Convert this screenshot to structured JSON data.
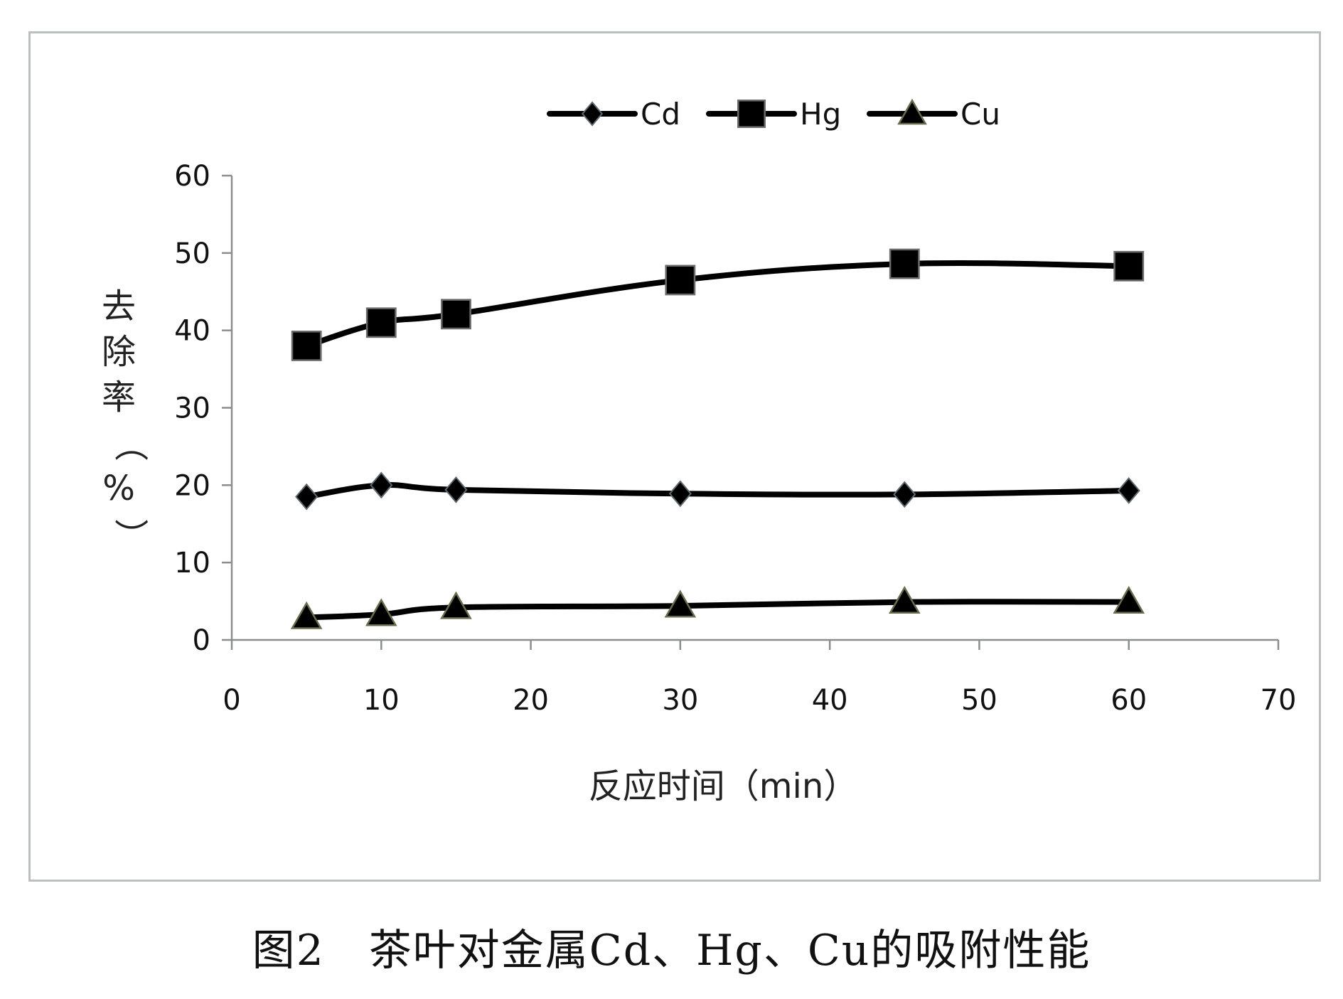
{
  "caption": "图2　茶叶对金属Cd、Hg、Cu的吸附性能",
  "chart_data": {
    "type": "line",
    "xlabel": "反应时间（min）",
    "ylabel": "去除率（%）",
    "xlim": [
      0,
      70
    ],
    "ylim": [
      0,
      60
    ],
    "xticks": [
      "0",
      "10",
      "20",
      "30",
      "40",
      "50",
      "60",
      "70"
    ],
    "yticks": [
      "0",
      "10",
      "20",
      "30",
      "40",
      "50",
      "60"
    ],
    "legend_position": "top",
    "grid": false,
    "series": [
      {
        "name": "Cd",
        "marker": "diamond",
        "color": "#000000",
        "x": [
          5,
          10,
          15,
          30,
          45,
          60
        ],
        "y": [
          18.5,
          20,
          19.4,
          18.9,
          18.8,
          19.3
        ]
      },
      {
        "name": "Hg",
        "marker": "square",
        "color": "#000000",
        "x": [
          5,
          10,
          15,
          30,
          45,
          60
        ],
        "y": [
          38,
          41,
          42.1,
          46.5,
          48.6,
          48.3
        ]
      },
      {
        "name": "Cu",
        "marker": "triangle",
        "color": "#000000",
        "x": [
          5,
          10,
          15,
          30,
          45,
          60
        ],
        "y": [
          2.9,
          3.3,
          4.2,
          4.4,
          4.9,
          4.9
        ]
      }
    ]
  }
}
